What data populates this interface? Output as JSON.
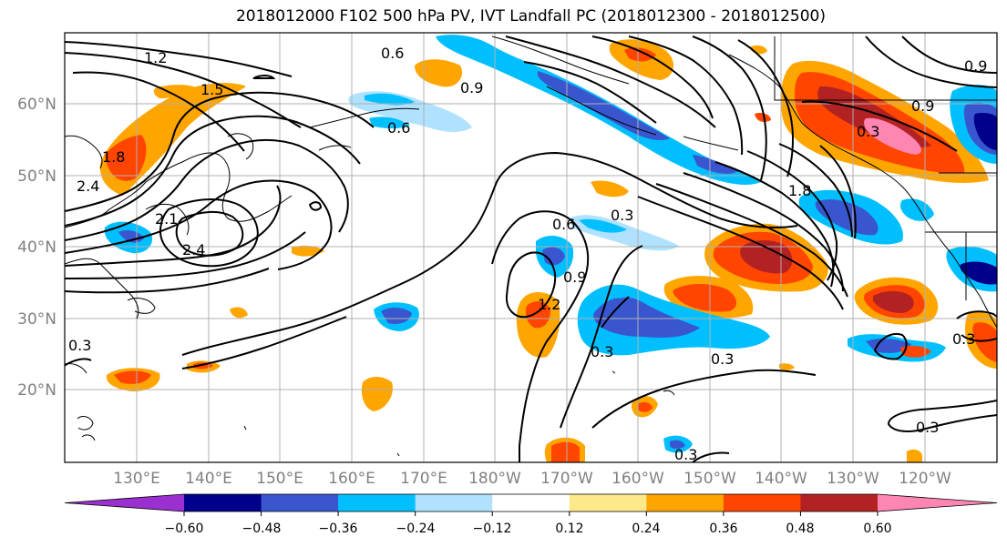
{
  "title": "2018012000 F102 500 hPa PV, IVT Landfall PC (2018012300 - 2018012500)",
  "map": {
    "lat_labels": [
      "60°N",
      "50°N",
      "40°N",
      "30°N",
      "20°N"
    ],
    "lon_labels": [
      "130°E",
      "140°E",
      "150°E",
      "160°E",
      "170°E",
      "180°W",
      "170°W",
      "160°W",
      "150°W",
      "140°W",
      "130°W",
      "120°W"
    ],
    "contour_labels": [
      "1.2",
      "1.5",
      "0.6",
      "0.9",
      "0.6",
      "1.8",
      "2.4",
      "2.1",
      "2.4",
      "0.6",
      "0.3",
      "0.9",
      "1.2",
      "0.3",
      "0.3",
      "0.3",
      "1.8",
      "0.9",
      "0.3",
      "0.9",
      "0.3",
      "0.3",
      "0.3"
    ]
  },
  "colorbar": {
    "colors": [
      "#9b30d0",
      "#00008b",
      "#3a56cf",
      "#00bfff",
      "#b0e2ff",
      "#ffffff",
      "#fee98a",
      "#ffa500",
      "#ff4500",
      "#b22222",
      "#ff85b3"
    ],
    "tick_labels": [
      "−0.60",
      "−0.48",
      "−0.36",
      "−0.24",
      "−0.12",
      "0.12",
      "0.24",
      "0.36",
      "0.48",
      "0.60"
    ]
  }
}
